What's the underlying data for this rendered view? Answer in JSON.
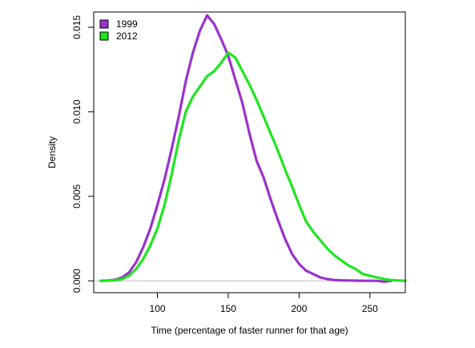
{
  "chart_data": {
    "type": "line",
    "title": "",
    "xlabel": "Time (percentage of faster runner for that age)",
    "ylabel": "Density",
    "xlim": [
      55,
      275
    ],
    "ylim": [
      -0.0007,
      0.0159
    ],
    "xticks": [
      100,
      150,
      200,
      250
    ],
    "yticks": [
      0.0,
      0.005,
      0.01,
      0.015
    ],
    "ytick_labels": [
      "0.000",
      "0.005",
      "0.010",
      "0.015"
    ],
    "grid": false,
    "baseline": 0,
    "baseline_color": "#bebebe",
    "legend_position": "top-left",
    "series": [
      {
        "name": "1999",
        "color": "#9a32cd",
        "x": [
          60,
          65,
          70,
          75,
          80,
          85,
          90,
          95,
          100,
          105,
          110,
          115,
          120,
          125,
          130,
          135,
          140,
          145,
          150,
          155,
          160,
          165,
          170,
          175,
          180,
          185,
          190,
          195,
          200,
          205,
          210,
          215,
          220,
          225,
          230,
          235,
          240,
          245,
          250,
          255,
          260,
          265
        ],
        "y": [
          0.0,
          2e-05,
          6e-05,
          0.0002,
          0.0005,
          0.0011,
          0.002,
          0.0031,
          0.0045,
          0.006,
          0.0078,
          0.0097,
          0.0118,
          0.0135,
          0.0148,
          0.0157,
          0.0152,
          0.0143,
          0.0133,
          0.0119,
          0.0105,
          0.0087,
          0.0071,
          0.0061,
          0.0048,
          0.0036,
          0.0025,
          0.0016,
          0.001,
          0.0006,
          0.0004,
          0.0002,
          0.0001,
          5e-05,
          3e-05,
          2e-05,
          1e-05,
          0.0,
          0.0,
          0.0,
          -5e-05,
          0.0
        ]
      },
      {
        "name": "2012",
        "color": "#1ee61e",
        "x": [
          60,
          65,
          70,
          75,
          80,
          85,
          90,
          95,
          100,
          105,
          110,
          115,
          120,
          125,
          130,
          135,
          140,
          145,
          150,
          155,
          160,
          165,
          170,
          175,
          180,
          185,
          190,
          195,
          200,
          205,
          210,
          215,
          220,
          225,
          230,
          235,
          240,
          245,
          250,
          255,
          260,
          265,
          270,
          275
        ],
        "y": [
          0.0,
          1e-05,
          3e-05,
          0.0001,
          0.0003,
          0.0007,
          0.0013,
          0.0021,
          0.0031,
          0.0045,
          0.0063,
          0.0083,
          0.01,
          0.0109,
          0.0115,
          0.0121,
          0.0124,
          0.0129,
          0.0135,
          0.0132,
          0.0124,
          0.0116,
          0.0107,
          0.0097,
          0.0087,
          0.0077,
          0.0066,
          0.0056,
          0.0045,
          0.0035,
          0.0029,
          0.0024,
          0.0019,
          0.0015,
          0.0012,
          0.0009,
          0.0007,
          0.0004,
          0.0003,
          0.0002,
          0.0001,
          5e-05,
          2e-05,
          0.0
        ]
      }
    ]
  }
}
